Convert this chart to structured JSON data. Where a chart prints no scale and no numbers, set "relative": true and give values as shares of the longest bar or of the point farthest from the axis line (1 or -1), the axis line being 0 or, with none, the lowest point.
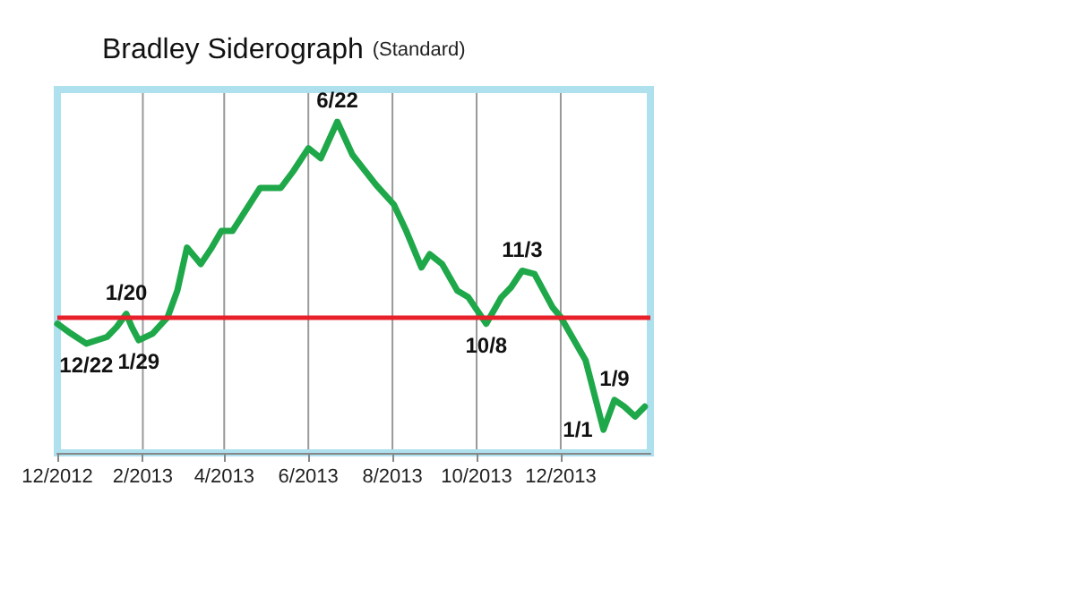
{
  "chart_data": {
    "type": "line",
    "title": "Bradley Siderograph",
    "subtitle": "(Standard)",
    "relative": true,
    "x": [
      "2012-12-01",
      "2012-12-11",
      "2012-12-22",
      "2013-01-06",
      "2013-01-13",
      "2013-01-20",
      "2013-01-24",
      "2013-01-29",
      "2013-02-08",
      "2013-02-19",
      "2013-02-26",
      "2013-03-05",
      "2013-03-15",
      "2013-03-23",
      "2013-03-30",
      "2013-04-07",
      "2013-04-27",
      "2013-05-12",
      "2013-05-21",
      "2013-06-01",
      "2013-06-10",
      "2013-06-22",
      "2013-07-03",
      "2013-07-20",
      "2013-08-02",
      "2013-08-11",
      "2013-08-22",
      "2013-08-28",
      "2013-09-06",
      "2013-09-17",
      "2013-09-25",
      "2013-10-08",
      "2013-10-19",
      "2013-10-26",
      "2013-11-03",
      "2013-11-12",
      "2013-11-25",
      "2013-12-01",
      "2013-12-19",
      "2014-01-01",
      "2014-01-09",
      "2014-01-16",
      "2014-01-24",
      "2014-01-31"
    ],
    "series": [
      {
        "color": "#1fa84a",
        "values": [
          0.39,
          0.36,
          0.33,
          0.35,
          0.38,
          0.42,
          0.38,
          0.34,
          0.36,
          0.41,
          0.49,
          0.62,
          0.57,
          0.62,
          0.67,
          0.67,
          0.8,
          0.8,
          0.85,
          0.92,
          0.89,
          1.0,
          0.9,
          0.81,
          0.75,
          0.67,
          0.56,
          0.6,
          0.57,
          0.49,
          0.47,
          0.39,
          0.47,
          0.5,
          0.55,
          0.54,
          0.44,
          0.41,
          0.28,
          0.07,
          0.16,
          0.14,
          0.11,
          0.14
        ]
      }
    ],
    "xlim": [
      "2012-12-01",
      "2014-02-04"
    ],
    "xticks": [
      {
        "value": "2012-12-01",
        "label": "12/2012"
      },
      {
        "value": "2013-02-01",
        "label": "2/2013"
      },
      {
        "value": "2013-04-01",
        "label": "4/2013"
      },
      {
        "value": "2013-06-01",
        "label": "6/2013"
      },
      {
        "value": "2013-08-01",
        "label": "8/2013"
      },
      {
        "value": "2013-10-01",
        "label": "10/2013"
      },
      {
        "value": "2013-12-01",
        "label": "12/2013"
      }
    ],
    "ref_lines": [
      {
        "axis": "y",
        "value": 0.41,
        "color": "#e8202a"
      }
    ],
    "annotations": [
      {
        "text": "12/22",
        "x": "2012-12-22",
        "y": 0.33
      },
      {
        "text": "1/20",
        "x": "2013-01-20",
        "y": 0.42
      },
      {
        "text": "1/29",
        "x": "2013-01-29",
        "y": 0.34
      },
      {
        "text": "6/22",
        "x": "2013-06-22",
        "y": 1.0
      },
      {
        "text": "10/8",
        "x": "2013-10-08",
        "y": 0.39
      },
      {
        "text": "11/3",
        "x": "2013-11-03",
        "y": 0.55
      },
      {
        "text": "1/1",
        "x": "2014-01-01",
        "y": 0.07
      },
      {
        "text": "1/9",
        "x": "2014-01-09",
        "y": 0.16
      }
    ],
    "grid": "x",
    "marker": "none",
    "line_style": "solid"
  }
}
